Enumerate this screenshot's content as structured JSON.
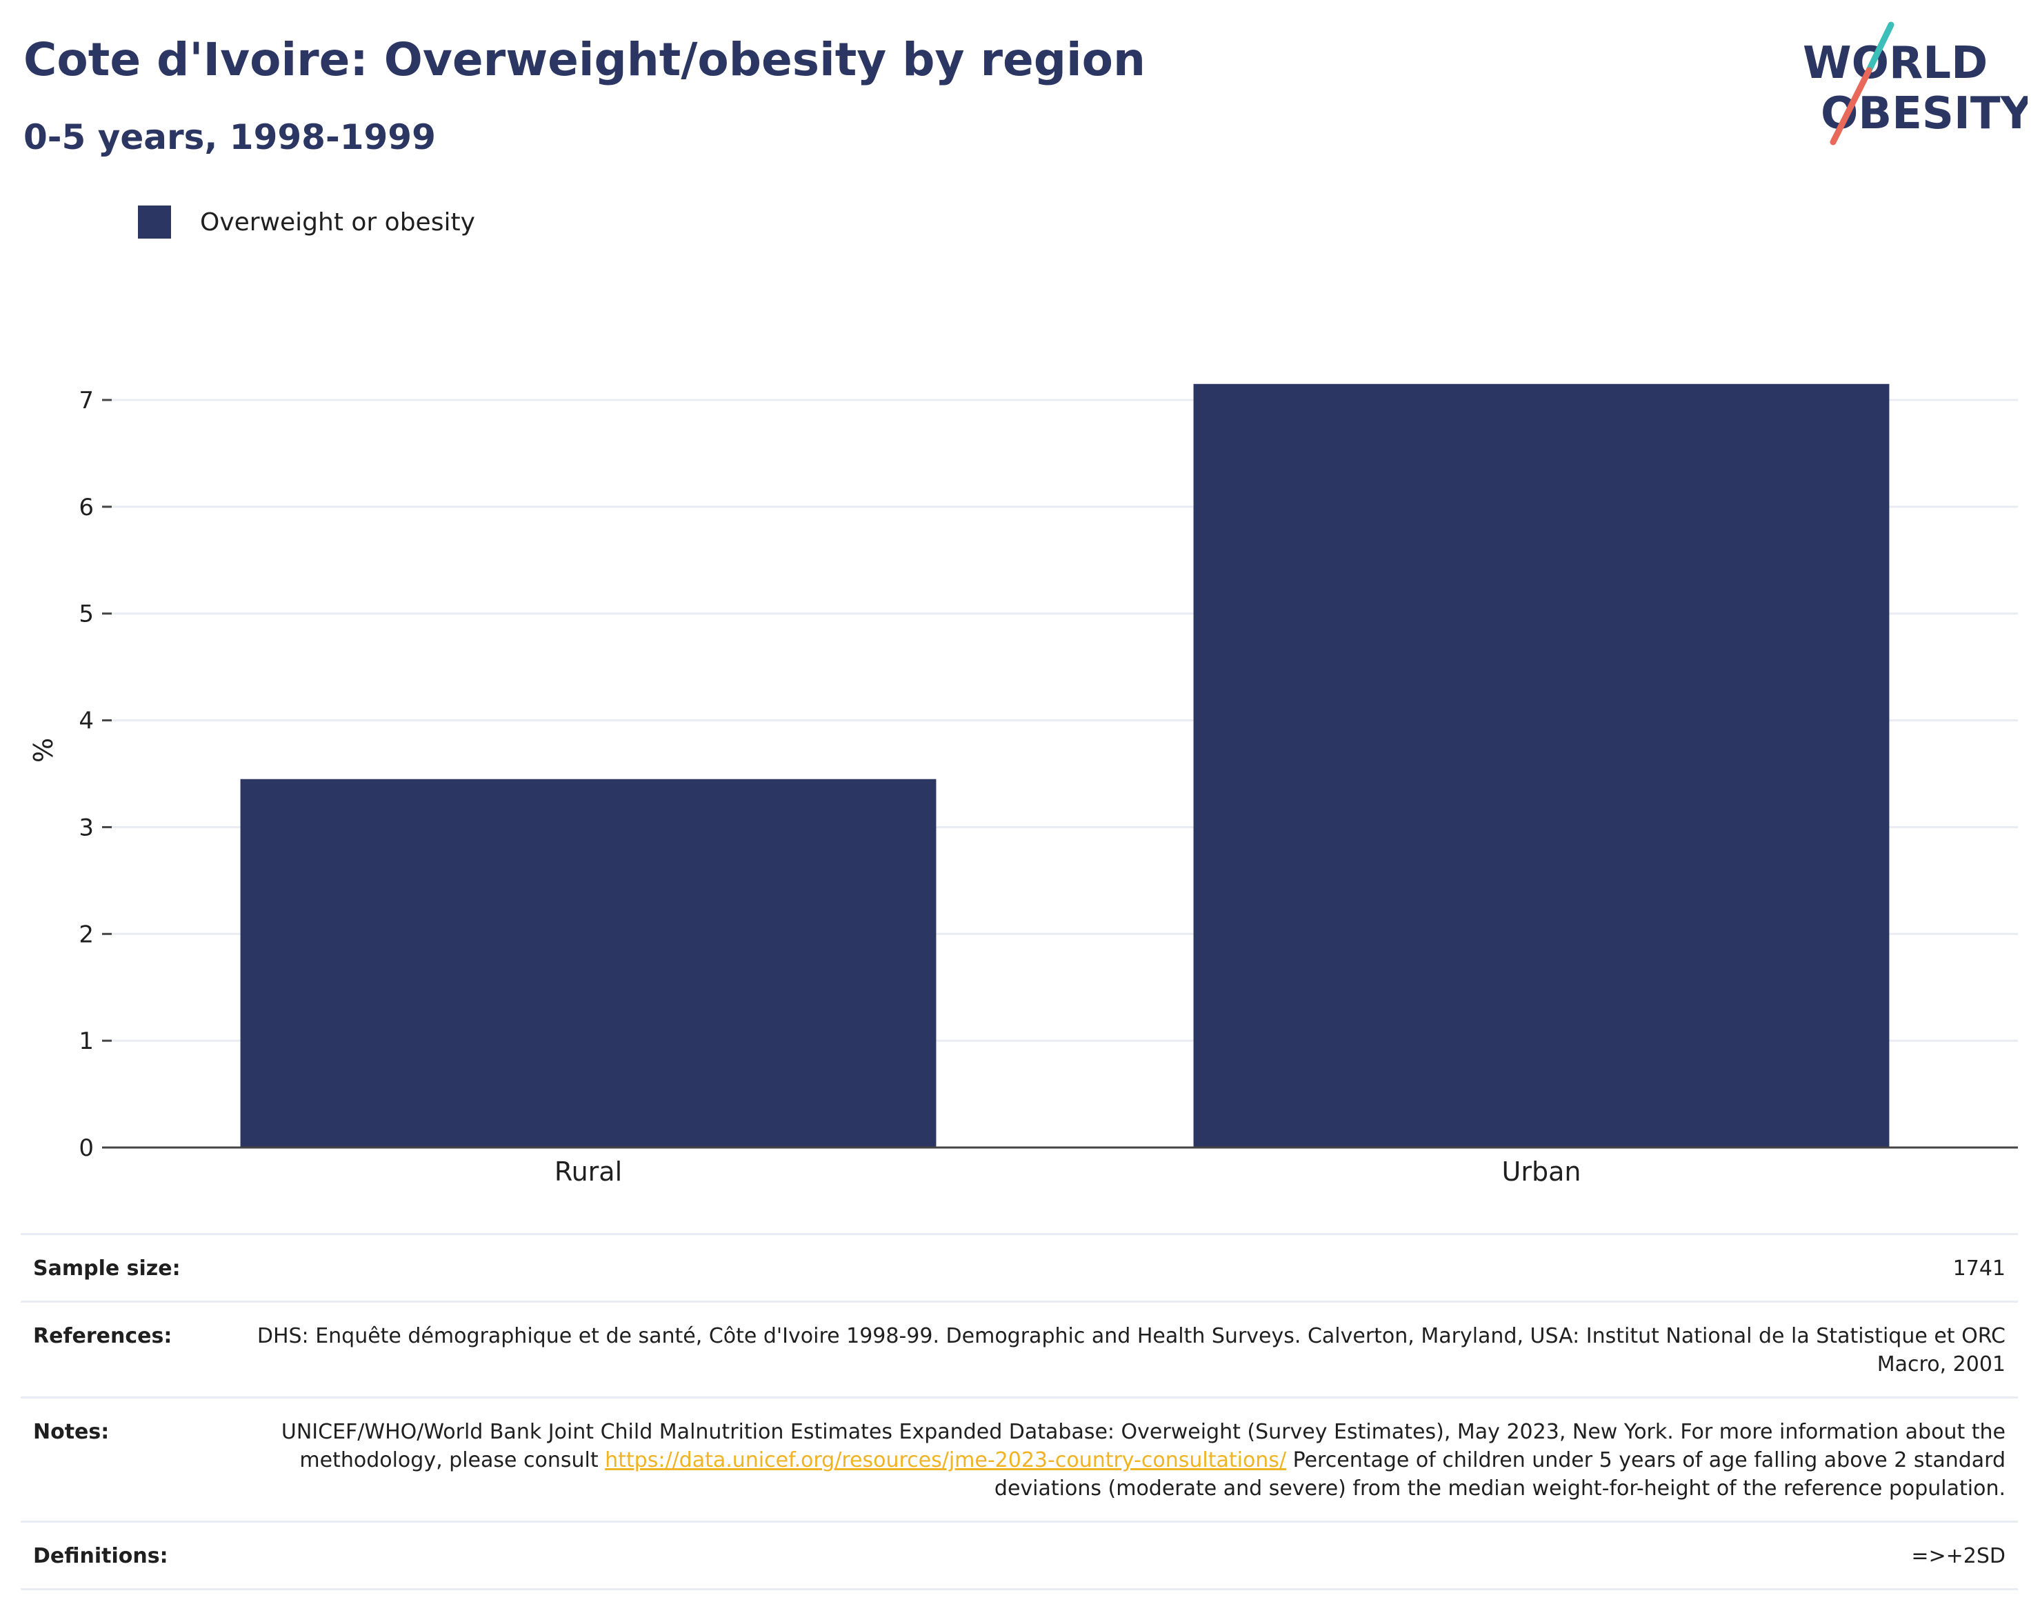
{
  "header": {
    "title": "Cote d'Ivoire: Overweight/obesity by region",
    "subtitle": "0-5 years, 1998-1999"
  },
  "logo": {
    "line1": "WORLD",
    "line2": "OBESITY",
    "colors": {
      "navy": "#2b3663",
      "teal": "#3cbfb8",
      "coral": "#e8685a"
    }
  },
  "legend": {
    "label": "Overweight or obesity",
    "color": "#2b3663"
  },
  "chart_data": {
    "type": "bar",
    "categories": [
      "Rural",
      "Urban"
    ],
    "series": [
      {
        "name": "Overweight or obesity",
        "values": [
          3.45,
          7.15
        ],
        "color": "#2b3663"
      }
    ],
    "title": "Cote d'Ivoire: Overweight/obesity by region",
    "subtitle": "0-5 years, 1998-1999",
    "xlabel": "",
    "ylabel": "%",
    "ylim": [
      0,
      7.2
    ],
    "yticks": [
      0,
      1,
      2,
      3,
      4,
      5,
      6,
      7
    ],
    "grid": true,
    "legend_position": "top-left"
  },
  "info": {
    "sample_size": {
      "label": "Sample size:",
      "value": "1741"
    },
    "references": {
      "label": "References:",
      "value": "DHS: Enquête démographique et de santé, Côte d'Ivoire 1998-99. Demographic and Health Surveys. Calverton, Maryland, USA: Institut National de la Statistique et ORC Macro, 2001"
    },
    "notes": {
      "label": "Notes:",
      "text_before": "UNICEF/WHO/World Bank Joint Child Malnutrition Estimates Expanded Database: Overweight (Survey Estimates), May 2023, New York. For more information about the methodology, please consult ",
      "link": "https://data.unicef.org/resources/jme-2023-country-consultations/",
      "text_after": " Percentage of children under 5 years of age falling above 2 standard deviations (moderate and severe) from the median weight-for-height of the reference population."
    },
    "definitions": {
      "label": "Definitions:",
      "value": "=>+2SD"
    }
  }
}
